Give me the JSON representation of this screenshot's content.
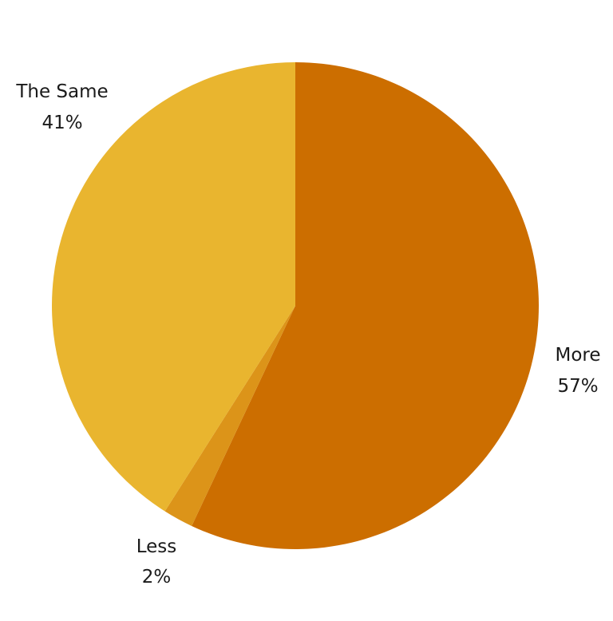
{
  "chart_data": {
    "type": "pie",
    "start": "top",
    "direction": "clockwise",
    "slices": [
      {
        "label": "More",
        "value": 57,
        "value_label": "57%",
        "color": "#CC6E00"
      },
      {
        "label": "Less",
        "value": 2,
        "value_label": "2%",
        "color": "#DC9419"
      },
      {
        "label": "The Same",
        "value": 41,
        "value_label": "41%",
        "color": "#E9B52F"
      }
    ]
  }
}
